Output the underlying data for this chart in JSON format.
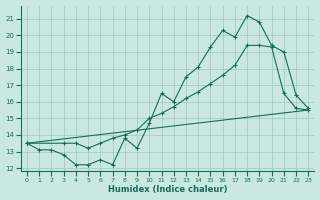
{
  "xlabel": "Humidex (Indice chaleur)",
  "ylabel": "",
  "xlim": [
    -0.5,
    23.5
  ],
  "ylim": [
    11.8,
    21.8
  ],
  "xticks": [
    0,
    1,
    2,
    3,
    4,
    5,
    6,
    7,
    8,
    9,
    10,
    11,
    12,
    13,
    14,
    15,
    16,
    17,
    18,
    19,
    20,
    21,
    22,
    23
  ],
  "yticks": [
    12,
    13,
    14,
    15,
    16,
    17,
    18,
    19,
    20,
    21
  ],
  "background_color": "#c8e8e0",
  "grid_color": "#a0c8c0",
  "line_color": "#1a6b5a",
  "line1_x": [
    0,
    1,
    2,
    3,
    4,
    5,
    6,
    7,
    8,
    9,
    10,
    11,
    12,
    13,
    14,
    15,
    16,
    17,
    18,
    19,
    20,
    21,
    22,
    23
  ],
  "line1_y": [
    13.5,
    13.1,
    13.1,
    12.8,
    12.2,
    12.2,
    12.5,
    12.2,
    13.8,
    13.2,
    14.7,
    16.5,
    16.0,
    17.5,
    18.1,
    19.3,
    20.3,
    19.9,
    21.2,
    20.8,
    19.4,
    19.0,
    16.4,
    15.6
  ],
  "line2_x": [
    0,
    3,
    4,
    5,
    6,
    7,
    8,
    9,
    10,
    11,
    12,
    13,
    14,
    15,
    16,
    17,
    18,
    19,
    20,
    21,
    22,
    23
  ],
  "line2_y": [
    13.5,
    13.5,
    13.5,
    13.2,
    13.5,
    13.8,
    14.0,
    14.3,
    15.0,
    15.3,
    15.7,
    16.2,
    16.6,
    17.1,
    17.6,
    18.2,
    19.4,
    19.4,
    19.3,
    16.5,
    15.6,
    15.5
  ],
  "line3_x": [
    0,
    23
  ],
  "line3_y": [
    13.5,
    15.5
  ]
}
